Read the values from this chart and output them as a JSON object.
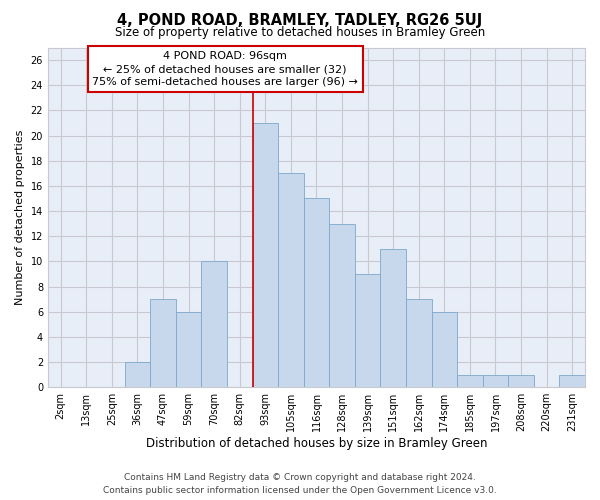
{
  "title": "4, POND ROAD, BRAMLEY, TADLEY, RG26 5UJ",
  "subtitle": "Size of property relative to detached houses in Bramley Green",
  "xlabel": "Distribution of detached houses by size in Bramley Green",
  "ylabel": "Number of detached properties",
  "bar_labels": [
    "2sqm",
    "13sqm",
    "25sqm",
    "36sqm",
    "47sqm",
    "59sqm",
    "70sqm",
    "82sqm",
    "93sqm",
    "105sqm",
    "116sqm",
    "128sqm",
    "139sqm",
    "151sqm",
    "162sqm",
    "174sqm",
    "185sqm",
    "197sqm",
    "208sqm",
    "220sqm",
    "231sqm"
  ],
  "bar_heights": [
    0,
    0,
    0,
    2,
    7,
    6,
    10,
    0,
    21,
    17,
    15,
    13,
    9,
    11,
    7,
    6,
    1,
    1,
    1,
    0,
    1
  ],
  "bar_color": "#c8d8ec",
  "bar_edge_color": "#7da8cc",
  "grid_color": "#c8c8d0",
  "bg_color": "#e8eef8",
  "ylim": [
    0,
    27
  ],
  "yticks": [
    0,
    2,
    4,
    6,
    8,
    10,
    12,
    14,
    16,
    18,
    20,
    22,
    24,
    26
  ],
  "vline_x_index": 8,
  "vline_color": "#cc0000",
  "annotation_title": "4 POND ROAD: 96sqm",
  "annotation_line1": "← 25% of detached houses are smaller (32)",
  "annotation_line2": "75% of semi-detached houses are larger (96) →",
  "annotation_box_color": "#ffffff",
  "annotation_box_edge": "#cc0000",
  "footer1": "Contains HM Land Registry data © Crown copyright and database right 2024.",
  "footer2": "Contains public sector information licensed under the Open Government Licence v3.0.",
  "title_fontsize": 10.5,
  "subtitle_fontsize": 8.5,
  "xlabel_fontsize": 8.5,
  "ylabel_fontsize": 8,
  "tick_fontsize": 7,
  "annotation_fontsize": 8,
  "footer_fontsize": 6.5
}
